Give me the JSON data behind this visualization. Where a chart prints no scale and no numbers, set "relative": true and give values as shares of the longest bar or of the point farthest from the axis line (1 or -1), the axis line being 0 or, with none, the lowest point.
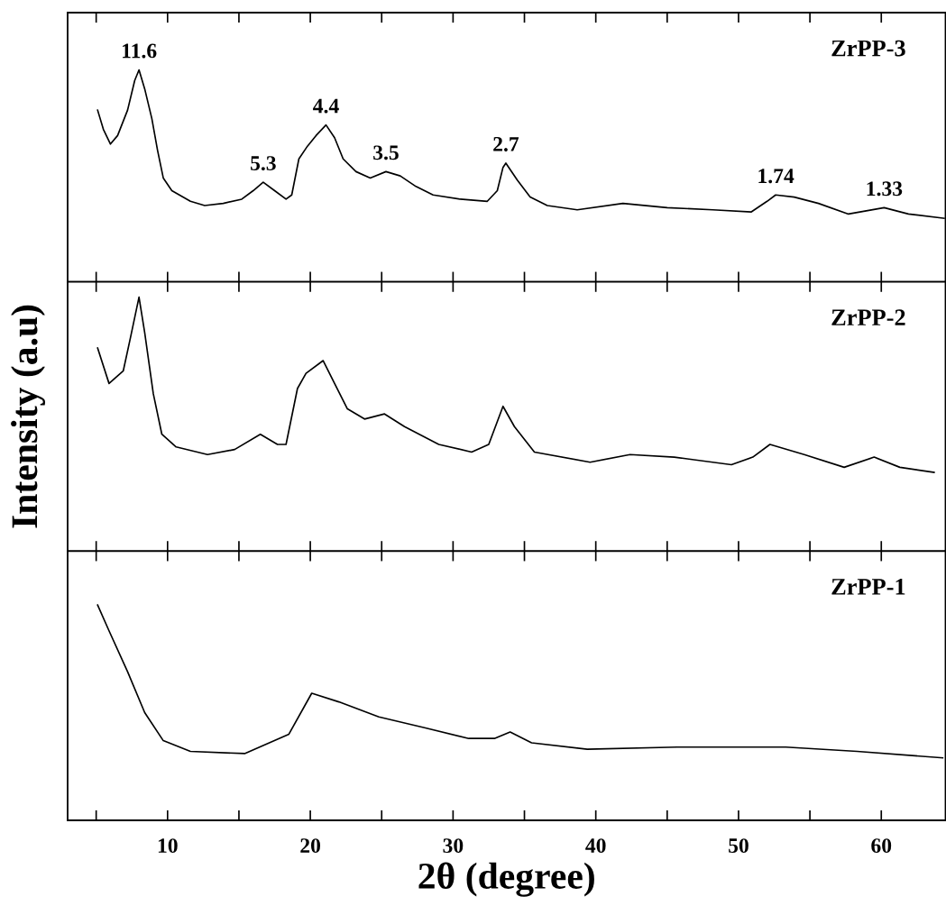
{
  "chart_data": [
    {
      "type": "line",
      "relative": true,
      "xlim": [
        3,
        64.5
      ],
      "xticks": [
        {
          "value": 5,
          "label": null
        },
        {
          "value": 10,
          "label": null
        },
        {
          "value": 15,
          "label": null
        },
        {
          "value": 20,
          "label": null
        },
        {
          "value": 25,
          "label": null
        },
        {
          "value": 30,
          "label": null
        },
        {
          "value": 35,
          "label": null
        },
        {
          "value": 40,
          "label": null
        },
        {
          "value": 45,
          "label": null
        },
        {
          "value": 50,
          "label": null
        },
        {
          "value": 55,
          "label": null
        },
        {
          "value": 60,
          "label": null
        }
      ],
      "tick_labels": false,
      "x": [
        5.1,
        5.5,
        6.0,
        6.5,
        7.2,
        7.7,
        8.0,
        8.4,
        8.9,
        9.3,
        9.7,
        10.3,
        11.6,
        12.6,
        13.9,
        15.2,
        16.0,
        16.7,
        17.5,
        18.3,
        18.7,
        19.2,
        19.8,
        20.4,
        21.1,
        21.7,
        22.3,
        23.2,
        24.2,
        25.3,
        26.3,
        27.4,
        28.6,
        30.5,
        32.4,
        33.1,
        33.5,
        33.7,
        34.5,
        35.4,
        36.6,
        38.7,
        41.9,
        45.0,
        48.2,
        50.9,
        52.0,
        52.6,
        53.9,
        55.6,
        57.7,
        60.2,
        61.9,
        64.4
      ],
      "series": [
        {
          "name": "ZrPP-3",
          "color": "#000000",
          "values": [
            0.81,
            0.72,
            0.65,
            0.69,
            0.81,
            0.95,
            1.0,
            0.91,
            0.77,
            0.62,
            0.49,
            0.43,
            0.38,
            0.36,
            0.37,
            0.39,
            0.43,
            0.47,
            0.43,
            0.39,
            0.41,
            0.58,
            0.64,
            0.69,
            0.74,
            0.68,
            0.58,
            0.52,
            0.49,
            0.52,
            0.5,
            0.45,
            0.41,
            0.39,
            0.38,
            0.43,
            0.54,
            0.56,
            0.48,
            0.4,
            0.36,
            0.34,
            0.37,
            0.35,
            0.34,
            0.33,
            0.38,
            0.41,
            0.4,
            0.37,
            0.32,
            0.35,
            0.32,
            0.3
          ]
        }
      ],
      "annotations": [
        {
          "text": "11.6",
          "x": 8.0,
          "y": 1.0
        },
        {
          "text": "5.3",
          "x": 16.7,
          "y": 0.47
        },
        {
          "text": "4.4",
          "x": 21.1,
          "y": 0.74
        },
        {
          "text": "3.5",
          "x": 25.3,
          "y": 0.52
        },
        {
          "text": "2.7",
          "x": 33.7,
          "y": 0.56
        },
        {
          "text": "1.74",
          "x": 52.6,
          "y": 0.41
        },
        {
          "text": "1.33",
          "x": 60.2,
          "y": 0.35
        }
      ]
    },
    {
      "type": "line",
      "relative": true,
      "ylabel": "Intensity (a.u)",
      "xlim": [
        3,
        64.5
      ],
      "xticks": [
        {
          "value": 5,
          "label": null
        },
        {
          "value": 10,
          "label": null
        },
        {
          "value": 15,
          "label": null
        },
        {
          "value": 20,
          "label": null
        },
        {
          "value": 25,
          "label": null
        },
        {
          "value": 30,
          "label": null
        },
        {
          "value": 35,
          "label": null
        },
        {
          "value": 40,
          "label": null
        },
        {
          "value": 45,
          "label": null
        },
        {
          "value": 50,
          "label": null
        },
        {
          "value": 55,
          "label": null
        },
        {
          "value": 60,
          "label": null
        }
      ],
      "tick_labels": false,
      "x": [
        5.1,
        5.9,
        6.9,
        7.4,
        8.0,
        8.4,
        9.0,
        9.6,
        10.6,
        12.8,
        14.7,
        16.5,
        17.7,
        18.3,
        19.1,
        19.7,
        20.9,
        21.7,
        22.6,
        23.8,
        25.2,
        26.6,
        29.0,
        31.3,
        32.5,
        33.5,
        34.3,
        35.7,
        39.6,
        42.4,
        45.5,
        49.5,
        51.0,
        52.2,
        54.6,
        57.4,
        59.5,
        61.3,
        63.7
      ],
      "series": [
        {
          "name": "ZrPP-2",
          "color": "#000000",
          "values": [
            0.8,
            0.66,
            0.71,
            0.84,
            1.0,
            0.86,
            0.62,
            0.46,
            0.41,
            0.38,
            0.4,
            0.46,
            0.42,
            0.42,
            0.64,
            0.7,
            0.75,
            0.66,
            0.56,
            0.52,
            0.54,
            0.49,
            0.42,
            0.39,
            0.42,
            0.57,
            0.49,
            0.39,
            0.35,
            0.38,
            0.37,
            0.34,
            0.37,
            0.42,
            0.38,
            0.33,
            0.37,
            0.33,
            0.31
          ]
        }
      ]
    },
    {
      "type": "line",
      "relative": true,
      "xlabel": "2θ (degree)",
      "xlim": [
        3,
        64.5
      ],
      "xticks": [
        {
          "value": 5,
          "label": null
        },
        10,
        {
          "value": 15,
          "label": null
        },
        20,
        {
          "value": 25,
          "label": null
        },
        30,
        {
          "value": 35,
          "label": null
        },
        40,
        {
          "value": 45,
          "label": null
        },
        50,
        {
          "value": 55,
          "label": null
        },
        60
      ],
      "tick_labels": "x",
      "x": [
        5.1,
        5.9,
        7.2,
        8.4,
        9.7,
        11.6,
        15.4,
        18.5,
        20.1,
        22.0,
        24.8,
        28.0,
        31.1,
        32.9,
        34.0,
        35.5,
        39.4,
        45.7,
        53.3,
        58.3,
        64.3
      ],
      "series": [
        {
          "name": "ZrPP-1",
          "color": "#000000",
          "values": [
            1.0,
            0.88,
            0.69,
            0.5,
            0.37,
            0.32,
            0.31,
            0.4,
            0.59,
            0.55,
            0.48,
            0.43,
            0.38,
            0.38,
            0.41,
            0.36,
            0.33,
            0.34,
            0.34,
            0.32,
            0.29
          ]
        }
      ]
    }
  ]
}
